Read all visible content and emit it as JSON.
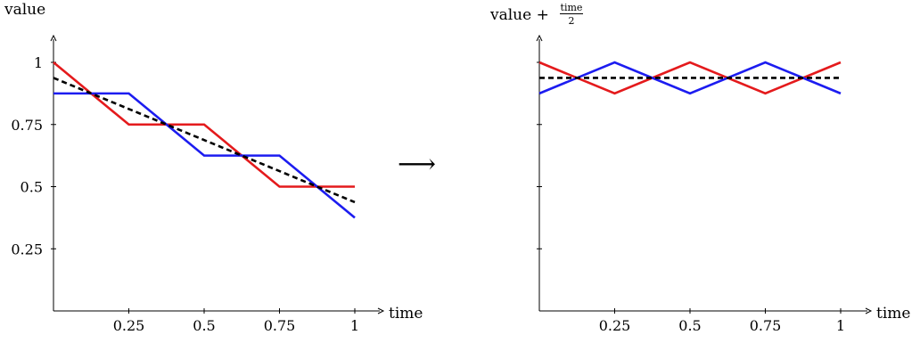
{
  "arrow_glyph": "⟶",
  "colors": {
    "red": "#e41a1c",
    "blue": "#1c1cf0",
    "black": "#000000"
  },
  "chart_data": [
    {
      "type": "line",
      "title": "",
      "xlabel": "time",
      "ylabel": "value",
      "xlim": [
        0,
        1
      ],
      "ylim": [
        0,
        1.04
      ],
      "xticks": [
        0.25,
        0.5,
        0.75,
        1
      ],
      "xtick_labels": [
        "0.25",
        "0.5",
        "0.75",
        "1"
      ],
      "yticks": [
        0.25,
        0.5,
        0.75,
        1
      ],
      "ytick_labels": [
        "0.25",
        "0.5",
        "0.75",
        "1"
      ],
      "grid": false,
      "series": [
        {
          "color": "#e41a1c",
          "style": "solid",
          "x": [
            0,
            0.25,
            0.375,
            0.5,
            0.75,
            1
          ],
          "y": [
            1,
            0.75,
            0.75,
            0.75,
            0.5,
            0.5
          ]
        },
        {
          "color": "#1c1cf0",
          "style": "solid",
          "x": [
            0,
            0.25,
            0.5,
            0.75,
            1
          ],
          "y": [
            0.875,
            0.875,
            0.625,
            0.625,
            0.375
          ]
        },
        {
          "color": "#000000",
          "style": "dashed",
          "x": [
            0,
            1
          ],
          "y": [
            0.9375,
            0.4375
          ]
        }
      ]
    },
    {
      "type": "line",
      "title": "",
      "xlabel": "time",
      "ylabel": "value +",
      "ylabel_fraction": {
        "numerator": "time",
        "denominator": "2"
      },
      "xlim": [
        0,
        1
      ],
      "ylim": [
        0,
        1.04
      ],
      "xticks": [
        0.25,
        0.5,
        0.75,
        1
      ],
      "xtick_labels": [
        "0.25",
        "0.5",
        "0.75",
        "1"
      ],
      "yticks": [
        0.25,
        0.5,
        0.75,
        1
      ],
      "ytick_labels": [],
      "grid": false,
      "series": [
        {
          "color": "#e41a1c",
          "style": "solid",
          "x": [
            0,
            0.25,
            0.5,
            0.75,
            1
          ],
          "y": [
            1,
            0.875,
            1,
            0.875,
            1
          ]
        },
        {
          "color": "#1c1cf0",
          "style": "solid",
          "x": [
            0,
            0.25,
            0.5,
            0.75,
            1
          ],
          "y": [
            0.875,
            1,
            0.875,
            1,
            0.875
          ]
        },
        {
          "color": "#000000",
          "style": "dashed",
          "x": [
            0,
            1
          ],
          "y": [
            0.9375,
            0.9375
          ]
        }
      ]
    }
  ]
}
